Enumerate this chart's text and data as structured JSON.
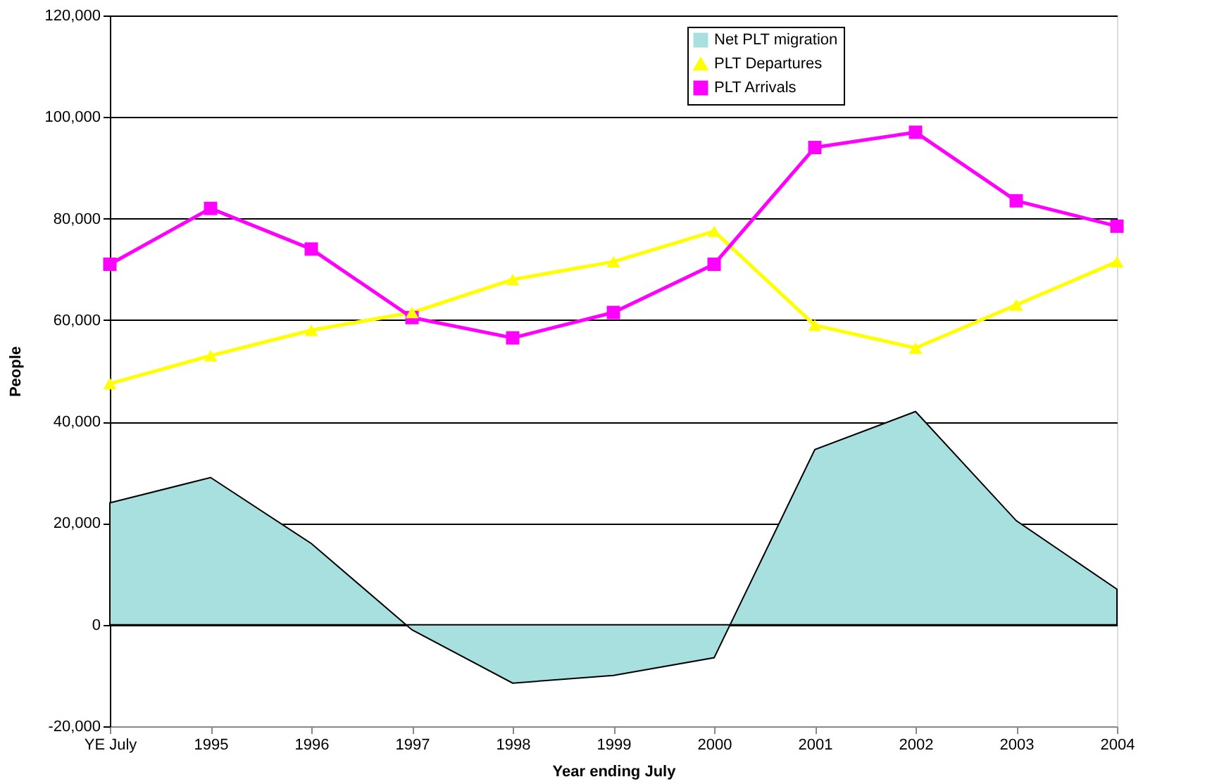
{
  "chart_data": {
    "type": "line",
    "xlabel": "Year ending July",
    "ylabel": "People",
    "categories": [
      "YE July",
      "1995",
      "1996",
      "1997",
      "1998",
      "1999",
      "2000",
      "2001",
      "2002",
      "2003",
      "2004"
    ],
    "series": [
      {
        "name": "Net PLT migration",
        "type": "area",
        "color": "#a8e0e0",
        "values": [
          24000,
          29000,
          16000,
          -1000,
          -11500,
          -10000,
          -6500,
          34500,
          42000,
          20500,
          7000
        ]
      },
      {
        "name": "PLT Departures",
        "color": "#ffff00",
        "marker": "triangle",
        "values": [
          47500,
          53000,
          58000,
          61500,
          68000,
          71500,
          77500,
          59000,
          54500,
          63000,
          71500
        ]
      },
      {
        "name": "PLT Arrivals",
        "color": "#ff00ff",
        "marker": "square",
        "values": [
          71000,
          82000,
          74000,
          60500,
          56500,
          61500,
          71000,
          94000,
          97000,
          83500,
          78500
        ]
      }
    ],
    "ylim": [
      -20000,
      120000
    ],
    "yticks": [
      {
        "value": -20000,
        "label": "-20,000"
      },
      0,
      {
        "value": 20000,
        "label": "20,000"
      },
      {
        "value": 40000,
        "label": "40,000"
      },
      {
        "value": 60000,
        "label": "60,000"
      },
      {
        "value": 80000,
        "label": "80,000"
      },
      {
        "value": 100000,
        "label": "100,000"
      },
      {
        "value": 120000,
        "label": "120,000"
      }
    ],
    "grid": "y",
    "legend": "top right"
  }
}
